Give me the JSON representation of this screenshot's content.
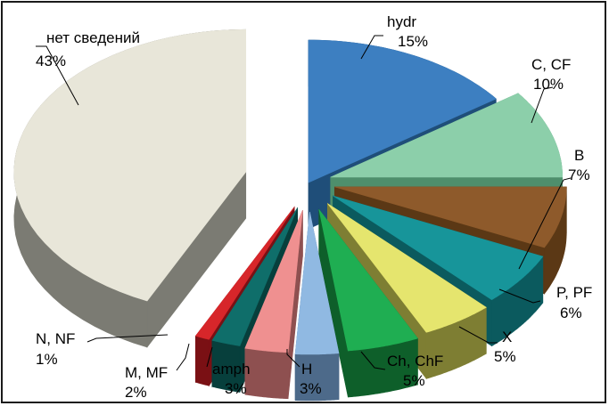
{
  "chart_data": {
    "type": "pie",
    "style": "3d-exploded",
    "slices": [
      {
        "key": "hydr",
        "name": "hydr",
        "pct_label": "15%",
        "value": 15,
        "color": "#3d7fc1",
        "side": "#1f4e79"
      },
      {
        "key": "c_cf",
        "name": "C, CF",
        "pct_label": "10%",
        "value": 10,
        "color": "#8ccfaa",
        "side": "#4e8f6c"
      },
      {
        "key": "b",
        "name": "B",
        "pct_label": "7%",
        "value": 7,
        "color": "#8e5a2b",
        "side": "#5b3815"
      },
      {
        "key": "p_pf",
        "name": "P, PF",
        "pct_label": "6%",
        "value": 6,
        "color": "#17959a",
        "side": "#0b5a5e"
      },
      {
        "key": "x",
        "name": "X",
        "pct_label": "5%",
        "value": 5,
        "color": "#e5e56e",
        "side": "#7e7e33"
      },
      {
        "key": "ch_chf",
        "name": "Ch, ChF",
        "pct_label": "5%",
        "value": 5,
        "color": "#1fae52",
        "side": "#0e5f2a"
      },
      {
        "key": "h",
        "name": "H",
        "pct_label": "3%",
        "value": 3,
        "color": "#90b9e2",
        "side": "#4d6a8a"
      },
      {
        "key": "amph",
        "name": "amph",
        "pct_label": "3%",
        "value": 3,
        "color": "#ef9090",
        "side": "#8e5050"
      },
      {
        "key": "m_mf",
        "name": "M, MF",
        "pct_label": "2%",
        "value": 2,
        "color": "#0f6e6a",
        "side": "#073f3c"
      },
      {
        "key": "n_nf",
        "name": "N, NF",
        "pct_label": "1%",
        "value": 1,
        "color": "#d7262a",
        "side": "#7a1014"
      },
      {
        "key": "none",
        "name": "нет сведений",
        "pct_label": "43%",
        "value": 43,
        "color": "#e8e6d9",
        "side": "#7b7b73"
      }
    ]
  }
}
